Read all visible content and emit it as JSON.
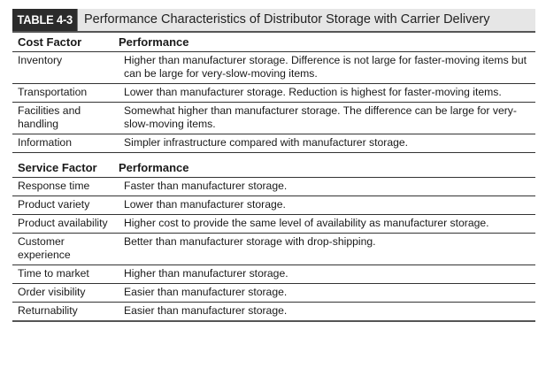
{
  "table": {
    "badge": "TABLE 4-3",
    "title": "Performance Characteristics of Distributor Storage with Carrier Delivery"
  },
  "cost_section": {
    "header": {
      "factor": "Cost Factor",
      "performance": "Performance"
    },
    "rows": [
      {
        "factor": "Inventory",
        "performance": "Higher than manufacturer storage. Difference is not large for faster-moving items but can be large for very-slow-moving items."
      },
      {
        "factor": "Transportation",
        "performance": "Lower than manufacturer storage. Reduction is highest for faster-moving items."
      },
      {
        "factor": "Facilities and handling",
        "performance": "Somewhat higher than manufacturer storage. The difference can be large for very-slow-moving items."
      },
      {
        "factor": "Information",
        "performance": "Simpler infrastructure compared with manufacturer storage."
      }
    ]
  },
  "service_section": {
    "header": {
      "factor": "Service Factor",
      "performance": "Performance"
    },
    "rows": [
      {
        "factor": "Response time",
        "performance": "Faster than manufacturer storage."
      },
      {
        "factor": "Product variety",
        "performance": "Lower than manufacturer storage."
      },
      {
        "factor": "Product availability",
        "performance": "Higher cost to provide the same level of availability as manufacturer storage."
      },
      {
        "factor": "Customer experience",
        "performance": "Better than manufacturer storage with drop-shipping."
      },
      {
        "factor": "Time to market",
        "performance": "Higher than manufacturer storage."
      },
      {
        "factor": "Order visibility",
        "performance": "Easier than manufacturer storage."
      },
      {
        "factor": "Returnability",
        "performance": "Easier than manufacturer storage."
      }
    ]
  }
}
